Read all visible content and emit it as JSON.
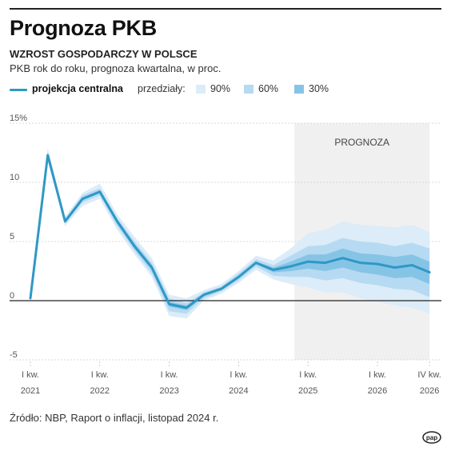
{
  "header": {
    "title": "Prognoza PKB",
    "subtitle": "WZROST GOSPODARCZY W POLSCE",
    "description": "PKB rok do roku, prognoza kwartalna, w proc."
  },
  "legend": {
    "main_label": "projekcja centralna",
    "intervals_label": "przedziały:",
    "band_90": "90%",
    "band_60": "60%",
    "band_30": "30%"
  },
  "source": "Źródło: NBP, Raport o inflacji, listopad 2024 r.",
  "logo_text": "pap",
  "colors": {
    "line": "#2e98c6",
    "band_90": "#dcecf8",
    "band_60": "#b6daf1",
    "band_30": "#86c4e6",
    "forecast_shade": "#f0f0f0",
    "zero_line": "#222222"
  },
  "chart_data": {
    "type": "line",
    "forecast_label": "PROGNOZA",
    "forecast_start_index": 16,
    "ylim": [
      -5,
      15
    ],
    "yticks": [
      -5,
      0,
      5,
      10,
      15
    ],
    "ytick_labels": [
      "-5",
      "0",
      "5",
      "10",
      "15%"
    ],
    "x_labels": [
      {
        "index": 0,
        "line1": "I kw.",
        "line2": "2021"
      },
      {
        "index": 4,
        "line1": "I kw.",
        "line2": "2022"
      },
      {
        "index": 8,
        "line1": "I kw.",
        "line2": "2023"
      },
      {
        "index": 12,
        "line1": "I kw.",
        "line2": "2024"
      },
      {
        "index": 16,
        "line1": "I kw.",
        "line2": "2025"
      },
      {
        "index": 20,
        "line1": "I kw.",
        "line2": "2026"
      },
      {
        "index": 23,
        "line1": "IV kw.",
        "line2": "2026"
      }
    ],
    "quarters": [
      "I kw. 2021",
      "II kw. 2021",
      "III kw. 2021",
      "IV kw. 2021",
      "I kw. 2022",
      "II kw. 2022",
      "III kw. 2022",
      "IV kw. 2022",
      "I kw. 2023",
      "II kw. 2023",
      "III kw. 2023",
      "IV kw. 2023",
      "I kw. 2024",
      "II kw. 2024",
      "III kw. 2024",
      "IV kw. 2024",
      "I kw. 2025",
      "II kw. 2025",
      "III kw. 2025",
      "IV kw. 2025",
      "I kw. 2026",
      "II kw. 2026",
      "III kw. 2026",
      "IV kw. 2026"
    ],
    "series": [
      {
        "name": "projekcja centralna",
        "values": [
          0.2,
          12.3,
          6.7,
          8.6,
          9.2,
          6.7,
          4.6,
          2.8,
          -0.3,
          -0.6,
          0.5,
          1.0,
          2.0,
          3.2,
          2.6,
          2.9,
          3.3,
          3.2,
          3.6,
          3.2,
          3.1,
          2.8,
          3.0,
          2.4
        ]
      }
    ],
    "bands": {
      "90": {
        "lower": [
          0.2,
          11.8,
          6.3,
          8.0,
          8.6,
          6.0,
          3.9,
          2.0,
          -1.3,
          -1.5,
          0.0,
          0.6,
          1.5,
          2.6,
          1.8,
          1.4,
          1.1,
          0.7,
          0.7,
          0.2,
          -0.1,
          -0.4,
          -0.6,
          -1.1
        ],
        "upper": [
          0.2,
          12.9,
          7.1,
          9.1,
          9.9,
          7.3,
          5.4,
          3.6,
          0.5,
          0.2,
          0.9,
          1.4,
          2.5,
          3.8,
          3.4,
          4.4,
          5.7,
          6.0,
          6.7,
          6.4,
          6.3,
          6.2,
          6.4,
          5.8
        ]
      },
      "60": {
        "lower": [
          0.2,
          12.0,
          6.5,
          8.3,
          8.9,
          6.3,
          4.2,
          2.3,
          -0.9,
          -1.1,
          0.2,
          0.8,
          1.7,
          2.9,
          2.1,
          2.0,
          2.0,
          1.7,
          1.9,
          1.5,
          1.3,
          1.0,
          0.9,
          0.3
        ],
        "upper": [
          0.2,
          12.6,
          6.9,
          8.9,
          9.5,
          7.0,
          5.0,
          3.2,
          0.2,
          -0.2,
          0.7,
          1.2,
          2.3,
          3.5,
          3.0,
          3.8,
          4.6,
          4.7,
          5.3,
          5.0,
          4.9,
          4.6,
          4.9,
          4.4
        ]
      },
      "30": {
        "lower": [
          0.2,
          12.2,
          6.6,
          8.5,
          9.1,
          6.5,
          4.4,
          2.6,
          -0.5,
          -0.8,
          0.4,
          0.9,
          1.9,
          3.1,
          2.4,
          2.5,
          2.7,
          2.5,
          2.8,
          2.4,
          2.2,
          1.9,
          2.0,
          1.4
        ],
        "upper": [
          0.2,
          12.4,
          6.8,
          8.7,
          9.3,
          6.9,
          4.8,
          3.0,
          -0.1,
          -0.4,
          0.6,
          1.1,
          2.1,
          3.3,
          2.8,
          3.3,
          3.9,
          3.9,
          4.4,
          4.0,
          3.9,
          3.7,
          3.9,
          3.3
        ]
      }
    }
  }
}
